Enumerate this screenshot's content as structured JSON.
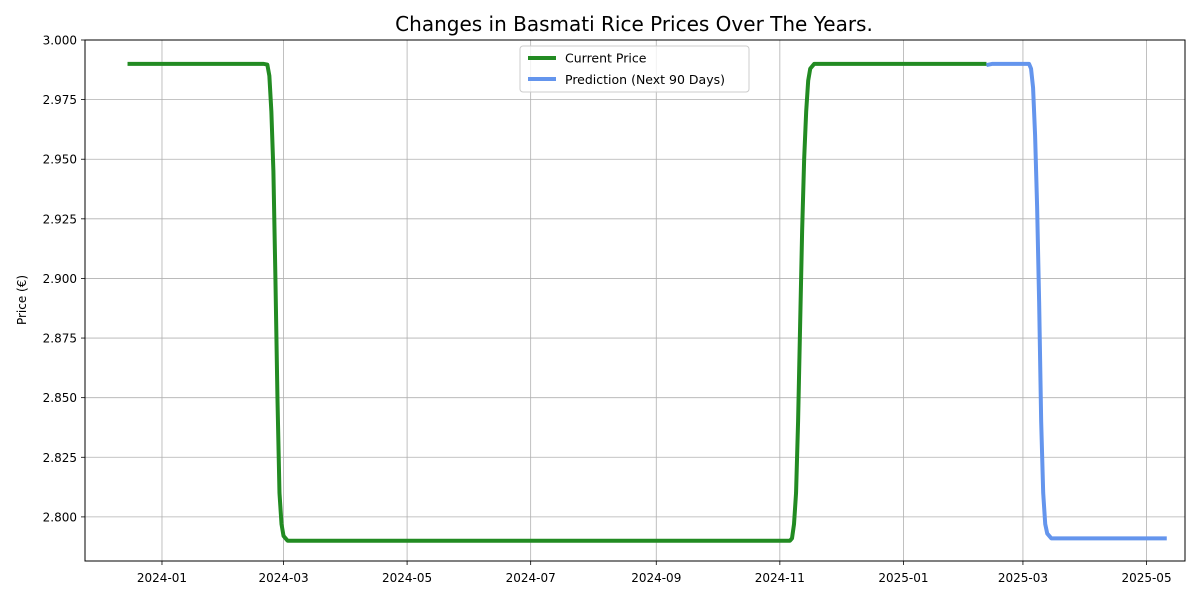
{
  "chart_data": {
    "type": "line",
    "title": "Changes in Basmati Rice Prices Over The Years.",
    "xlabel": "",
    "ylabel": "Price (€)",
    "xlim": [
      "2023-11-24",
      "2025-05-20"
    ],
    "ylim": [
      2.7815,
      3.0
    ],
    "x_ticks": [
      "2024-01",
      "2024-03",
      "2024-05",
      "2024-07",
      "2024-09",
      "2024-11",
      "2025-01",
      "2025-03",
      "2025-05"
    ],
    "y_ticks": [
      "2.800",
      "2.825",
      "2.850",
      "2.875",
      "2.900",
      "2.925",
      "2.950",
      "2.975",
      "3.000"
    ],
    "grid": true,
    "legend_position": "top-center",
    "series": [
      {
        "name": "Current Price",
        "color": "#228b22",
        "points": [
          [
            "2023-12-15",
            2.99
          ],
          [
            "2024-02-20",
            2.99
          ],
          [
            "2024-02-22",
            2.9897
          ],
          [
            "2024-02-23",
            2.985
          ],
          [
            "2024-02-24",
            2.97
          ],
          [
            "2024-02-25",
            2.945
          ],
          [
            "2024-02-26",
            2.9
          ],
          [
            "2024-02-27",
            2.85
          ],
          [
            "2024-02-28",
            2.81
          ],
          [
            "2024-02-29",
            2.797
          ],
          [
            "2024-03-01",
            2.792
          ],
          [
            "2024-03-03",
            2.79
          ],
          [
            "2024-11-06",
            2.79
          ],
          [
            "2024-11-07",
            2.791
          ],
          [
            "2024-11-08",
            2.797
          ],
          [
            "2024-11-09",
            2.81
          ],
          [
            "2024-11-10",
            2.84
          ],
          [
            "2024-11-11",
            2.88
          ],
          [
            "2024-11-12",
            2.92
          ],
          [
            "2024-11-13",
            2.95
          ],
          [
            "2024-11-14",
            2.97
          ],
          [
            "2024-11-15",
            2.983
          ],
          [
            "2024-11-16",
            2.988
          ],
          [
            "2024-11-18",
            2.99
          ],
          [
            "2025-02-11",
            2.99
          ]
        ]
      },
      {
        "name": "Prediction (Next 90 Days)",
        "color": "#6495ed",
        "points": [
          [
            "2025-02-11",
            2.9895
          ],
          [
            "2025-02-14",
            2.99
          ],
          [
            "2025-03-04",
            2.99
          ],
          [
            "2025-03-05",
            2.988
          ],
          [
            "2025-03-06",
            2.98
          ],
          [
            "2025-03-07",
            2.96
          ],
          [
            "2025-03-08",
            2.93
          ],
          [
            "2025-03-09",
            2.89
          ],
          [
            "2025-03-10",
            2.84
          ],
          [
            "2025-03-11",
            2.81
          ],
          [
            "2025-03-12",
            2.797
          ],
          [
            "2025-03-13",
            2.793
          ],
          [
            "2025-03-15",
            2.791
          ],
          [
            "2025-05-11",
            2.791
          ]
        ]
      }
    ]
  }
}
